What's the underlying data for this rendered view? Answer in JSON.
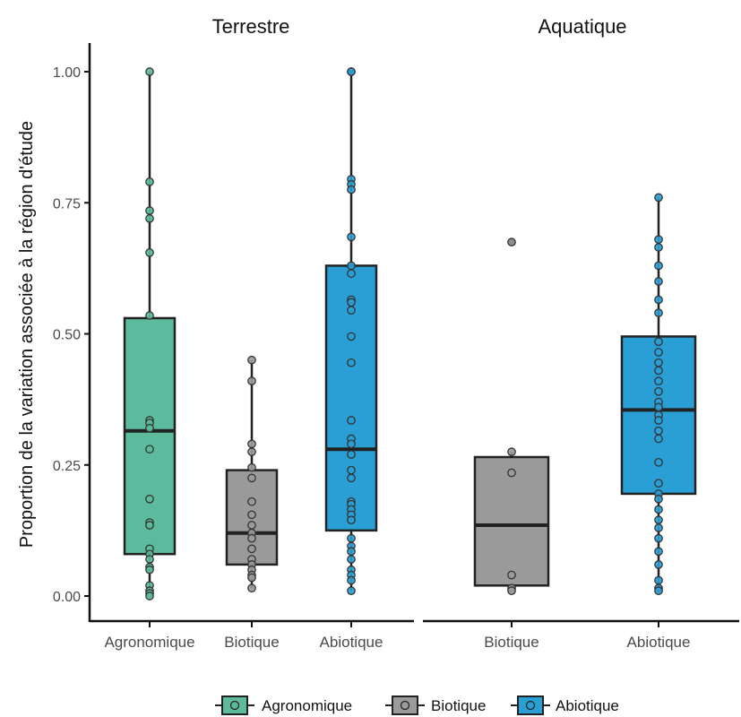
{
  "chart_data": {
    "type": "boxplot",
    "ylabel": "Proportion de la variation associée à la région d'étude",
    "ylim": [
      0,
      1
    ],
    "yticks": [
      "0.00",
      "0.25",
      "0.50",
      "0.75",
      "1.00"
    ],
    "yticks_values": [
      0,
      0.25,
      0.5,
      0.75,
      1
    ],
    "grid": false,
    "legend_position": "bottom",
    "legend": [
      {
        "name": "Agronomique",
        "color": "#5dbb9d"
      },
      {
        "name": "Biotique",
        "color": "#9a9a9a"
      },
      {
        "name": "Abiotique",
        "color": "#2a9fd6"
      }
    ],
    "panels": [
      {
        "title": "Terrestre",
        "groups": [
          {
            "category": "Agronomique",
            "color": "#5dbb9d",
            "q1": 0.08,
            "median": 0.315,
            "q3": 0.53,
            "whisker_low": 0.0,
            "whisker_high": 1.0,
            "points": [
              1.0,
              0.79,
              0.735,
              0.72,
              0.655,
              0.535,
              0.335,
              0.33,
              0.32,
              0.28,
              0.185,
              0.14,
              0.135,
              0.09,
              0.08,
              0.07,
              0.055,
              0.05,
              0.02,
              0.01,
              0.005,
              0.0
            ]
          },
          {
            "category": "Biotique",
            "color": "#9a9a9a",
            "q1": 0.06,
            "median": 0.12,
            "q3": 0.24,
            "whisker_low": 0.015,
            "whisker_high": 0.45,
            "points": [
              0.45,
              0.41,
              0.29,
              0.275,
              0.245,
              0.225,
              0.18,
              0.155,
              0.135,
              0.12,
              0.11,
              0.09,
              0.07,
              0.06,
              0.05,
              0.04,
              0.035,
              0.015
            ]
          },
          {
            "category": "Abiotique",
            "color": "#2a9fd6",
            "q1": 0.125,
            "median": 0.28,
            "q3": 0.63,
            "whisker_low": 0.01,
            "whisker_high": 1.0,
            "points": [
              1.0,
              1.0,
              0.795,
              0.785,
              0.775,
              0.685,
              0.63,
              0.615,
              0.565,
              0.56,
              0.545,
              0.495,
              0.445,
              0.335,
              0.3,
              0.29,
              0.27,
              0.24,
              0.225,
              0.18,
              0.175,
              0.165,
              0.155,
              0.145,
              0.11,
              0.095,
              0.085,
              0.07,
              0.05,
              0.04,
              0.03,
              0.01
            ]
          }
        ]
      },
      {
        "title": "Aquatique",
        "groups": [
          {
            "category": "Biotique",
            "color": "#9a9a9a",
            "q1": 0.02,
            "median": 0.135,
            "q3": 0.265,
            "whisker_low": 0.01,
            "whisker_high": 0.275,
            "outliers": [
              0.675
            ],
            "points": [
              0.675,
              0.275,
              0.235,
              0.04,
              0.015,
              0.01
            ]
          },
          {
            "category": "Abiotique",
            "color": "#2a9fd6",
            "q1": 0.195,
            "median": 0.355,
            "q3": 0.495,
            "whisker_low": 0.01,
            "whisker_high": 0.76,
            "points": [
              0.76,
              0.68,
              0.665,
              0.63,
              0.6,
              0.565,
              0.54,
              0.485,
              0.465,
              0.445,
              0.43,
              0.41,
              0.39,
              0.37,
              0.36,
              0.345,
              0.335,
              0.315,
              0.3,
              0.255,
              0.215,
              0.195,
              0.185,
              0.165,
              0.145,
              0.13,
              0.11,
              0.085,
              0.06,
              0.03,
              0.015,
              0.01
            ]
          }
        ]
      }
    ]
  }
}
